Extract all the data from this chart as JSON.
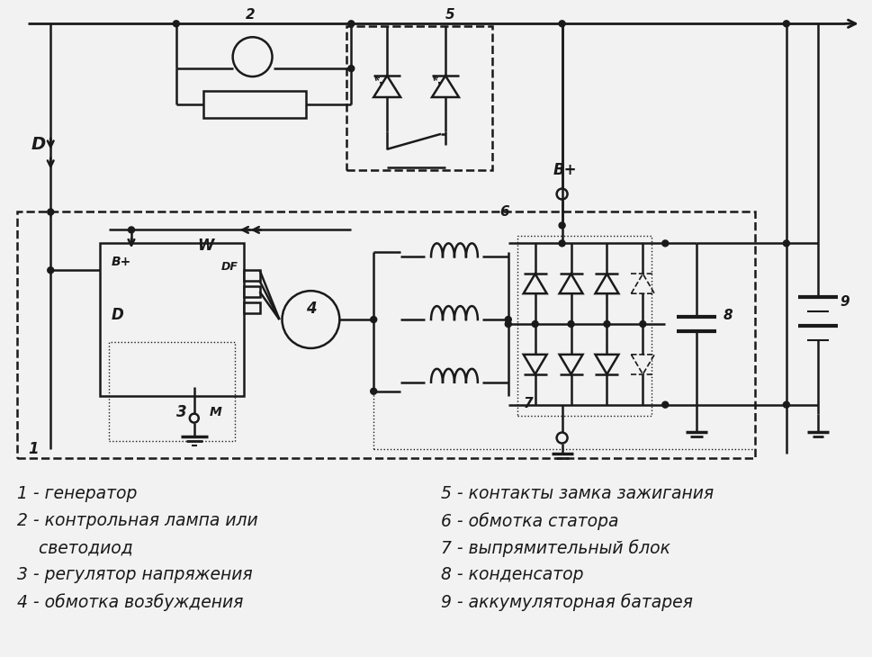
{
  "bg_color": "#f2f2f2",
  "line_color": "#1a1a1a",
  "legend_left": [
    "1 - генератор",
    "2 - контрольная лампа или",
    "    светодиод",
    "3 - регулятор напряжения",
    "4 - обмотка возбуждения"
  ],
  "legend_right": [
    "5 - контакты замка зажигания",
    "6 - обмотка статора",
    "7 - выпрямительный блок",
    "8 - конденсатор",
    "9 - аккумуляторная батарея"
  ]
}
